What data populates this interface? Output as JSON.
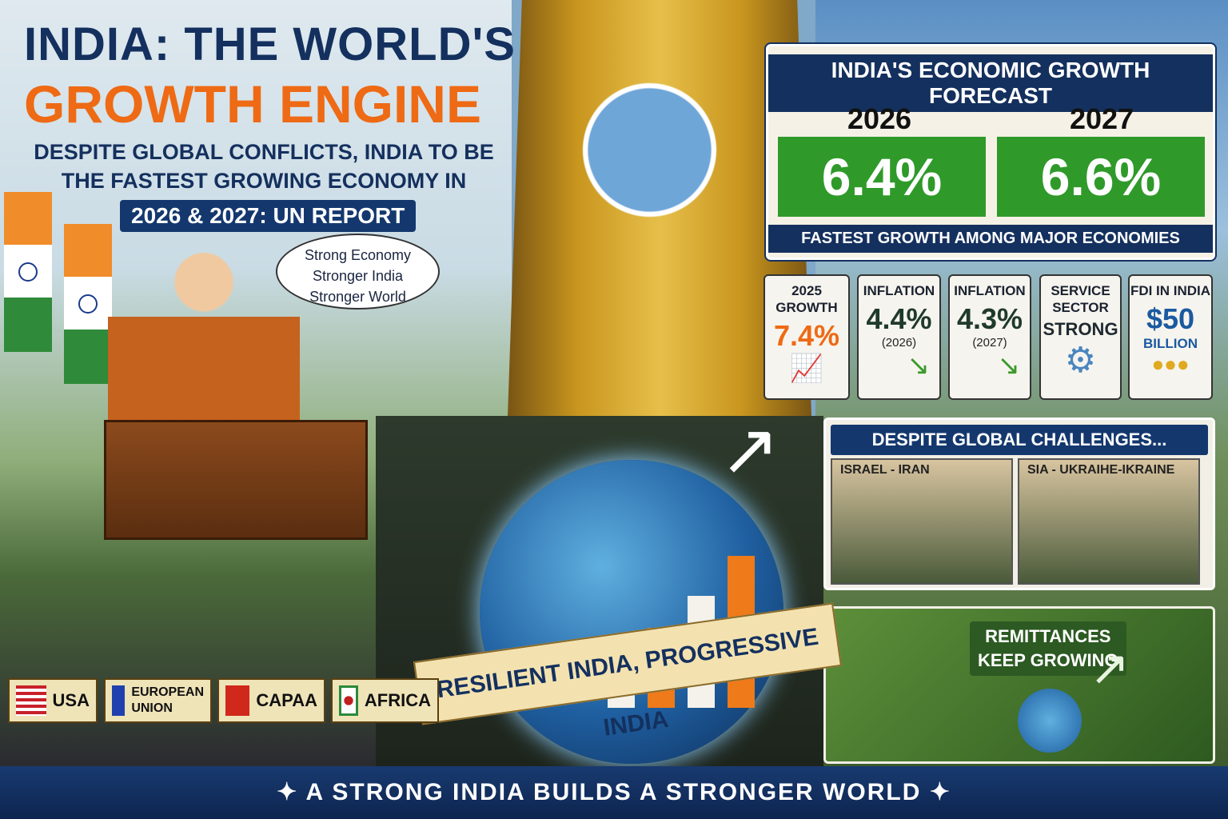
{
  "header": {
    "title_line1": "INDIA: THE WORLD'S",
    "title_line2": "GROWTH ENGINE",
    "subtitle": "DESPITE GLOBAL CONFLICTS, INDIA TO BE THE FASTEST GROWING ECONOMY IN",
    "subtitle_pill": "2026 & 2027: UN REPORT"
  },
  "speech_bubble": [
    "Strong Economy",
    "Stronger India",
    "Stronger World"
  ],
  "forecast": {
    "title": "INDIA'S ECONOMIC GROWTH FORECAST",
    "years": [
      {
        "year": "2026",
        "value": "6.4%"
      },
      {
        "year": "2027",
        "value": "6.6%"
      }
    ],
    "footer": "FASTEST GROWTH AMONG MAJOR ECONOMIES",
    "accent": "#2f9a2a"
  },
  "stats": [
    {
      "heading": "2025 GROWTH",
      "value": "7.4%",
      "sub": "",
      "icon": "bar-chart-up-icon",
      "color": "#ee6a14"
    },
    {
      "heading": "INFLATION",
      "value": "4.4%",
      "sub": "(2026)",
      "icon": "arrow-down-icon",
      "color": "#1f3a2c"
    },
    {
      "heading": "INFLATION",
      "value": "4.3%",
      "sub": "(2027)",
      "icon": "arrow-down-icon",
      "color": "#1f3a2c"
    },
    {
      "heading": "SERVICE SECTOR",
      "value": "STRONG",
      "sub": "",
      "icon": "gear-person-icon",
      "color": "#1f2a30"
    },
    {
      "heading": "FDI IN INDIA",
      "value": "$50",
      "sub": "BILLION",
      "icon": "coins-icon",
      "color": "#1a5aa0"
    }
  ],
  "challenges": {
    "title": "DESPITE GLOBAL CHALLENGES...",
    "scenes": [
      "ISRAEL - IRAN",
      "SIA - UKRAIHE-IKRAINE"
    ]
  },
  "remittances": {
    "label_line1": "REMITTANCES",
    "label_line2": "KEEP GROWING"
  },
  "ribbon": "RESILIENT INDIA, PROGRESSIVE INDIA",
  "nameplates": [
    "USA",
    "EUROPEAN UNION",
    "CAPAA",
    "AFRICA"
  ],
  "footer": "A STRONG INDIA BUILDS A STRONGER WORLD"
}
